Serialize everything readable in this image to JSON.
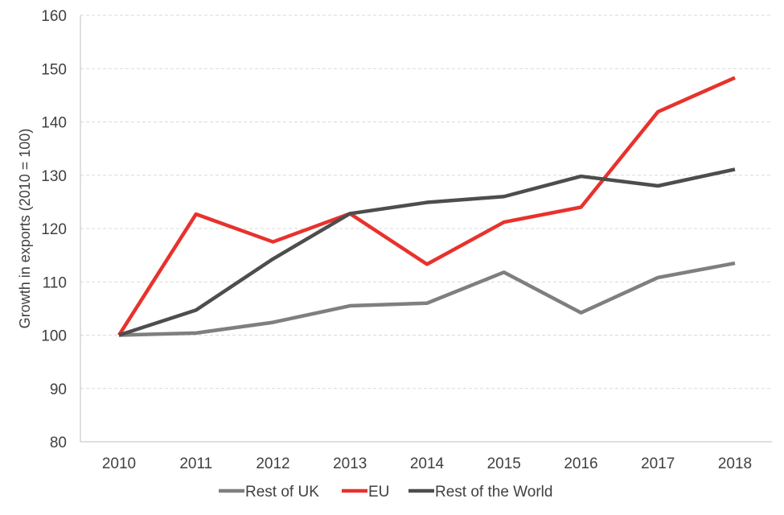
{
  "chart_data": {
    "type": "line",
    "title": "",
    "xlabel": "",
    "ylabel": "Growth in exports (2010 = 100)",
    "categories": [
      "2010",
      "2011",
      "2012",
      "2013",
      "2014",
      "2015",
      "2016",
      "2017",
      "2018"
    ],
    "ylim": [
      80,
      160
    ],
    "yticks": [
      80,
      90,
      100,
      110,
      120,
      130,
      140,
      150,
      160
    ],
    "grid": true,
    "legend_position": "bottom",
    "series": [
      {
        "name": "Rest of UK",
        "color": "#7f7f7f",
        "values": [
          100,
          100.4,
          102.4,
          105.5,
          106,
          111.8,
          104.2,
          110.8,
          113.5
        ]
      },
      {
        "name": "EU",
        "color": "#e8322d",
        "values": [
          100,
          122.7,
          117.5,
          122.8,
          113.3,
          121.2,
          124,
          141.9,
          148.3
        ]
      },
      {
        "name": "Rest of the World",
        "color": "#4d4d4d",
        "values": [
          100,
          104.7,
          114.3,
          122.8,
          124.9,
          126,
          129.8,
          128,
          131.1
        ]
      }
    ]
  }
}
